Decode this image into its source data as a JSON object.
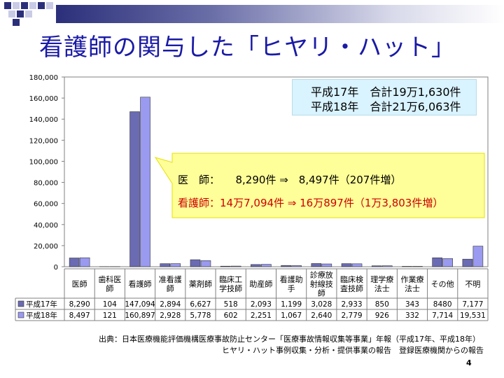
{
  "title": "看護師の関与した「ヒヤリ・ハット」",
  "info_box": {
    "line1": "平成17年　合計19万1,630件",
    "line2": "平成18年　合計21万6,063件"
  },
  "callout": {
    "line1": "医　師：　　8,290件 ⇒　8,497件（207件増）",
    "line2": "看護師：14万7,094件 ⇒ 16万897件（1万3,803件増）"
  },
  "source": {
    "line1": "出典：日本医療機能評価機構医療事故防止センター「医療事故情報収集等事業」年報（平成17年、平成18年）",
    "line2": "ヒヤリ・ハット事例収集・分析・提供事業の報告　登録医療機関からの報告"
  },
  "page_number": "4",
  "chart_data": {
    "type": "bar",
    "categories": [
      "医師",
      "歯科医師",
      "看護師",
      "准看護師",
      "薬剤師",
      "臨床工学技師",
      "助産師",
      "看護助手",
      "診療放射線技師",
      "臨床検査技師",
      "理学療法士",
      "作業療法士",
      "その他",
      "不明"
    ],
    "category_lines": [
      [
        "医師"
      ],
      [
        "歯科医",
        "師"
      ],
      [
        "看護師"
      ],
      [
        "准看護",
        "師"
      ],
      [
        "薬剤師"
      ],
      [
        "臨床工",
        "学技師"
      ],
      [
        "助産師"
      ],
      [
        "看護助",
        "手"
      ],
      [
        "診療放",
        "射線技",
        "師"
      ],
      [
        "臨床検",
        "査技師"
      ],
      [
        "理学療",
        "法士"
      ],
      [
        "作業療",
        "法士"
      ],
      [
        "その他"
      ],
      [
        "不明"
      ]
    ],
    "series": [
      {
        "name": "平成17年",
        "color": "#6b6bb3",
        "values": [
          8290,
          104,
          147094,
          2894,
          6627,
          518,
          2093,
          1199,
          3028,
          2933,
          850,
          343,
          8480,
          7177
        ],
        "labels": [
          "8,290",
          "104",
          "147,094",
          "2,894",
          "6,627",
          "518",
          "2,093",
          "1,199",
          "3,028",
          "2,933",
          "850",
          "343",
          "8480",
          "7,177"
        ]
      },
      {
        "name": "平成18年",
        "color": "#9a9af0",
        "values": [
          8497,
          121,
          160897,
          2928,
          5778,
          602,
          2251,
          1067,
          2640,
          2779,
          926,
          332,
          7714,
          19531
        ],
        "labels": [
          "8,497",
          "121",
          "160,897",
          "2,928",
          "5,778",
          "602",
          "2,251",
          "1,067",
          "2,640",
          "2,779",
          "926",
          "332",
          "7,714",
          "19,531"
        ]
      }
    ],
    "ylim": [
      0,
      180000
    ],
    "yticks": [
      "0",
      "20,000",
      "40,000",
      "60,000",
      "80,000",
      "100,000",
      "120,000",
      "140,000",
      "160,000",
      "180,000"
    ],
    "legend": "table"
  }
}
